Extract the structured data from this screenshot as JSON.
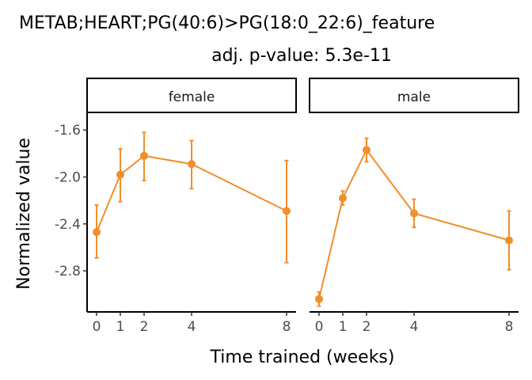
{
  "chart_data": {
    "type": "line",
    "title": "METAB;HEART;PG(40:6)>PG(18:0_22:6)_feature",
    "subtitle": "adj. p-value: 5.3e-11",
    "xlabel": "Time trained (weeks)",
    "ylabel": "Normalized value",
    "ylim": [
      -3.15,
      -1.45
    ],
    "yticks": [
      -1.6,
      -2.0,
      -2.4,
      -2.8
    ],
    "ytick_labels": [
      "-1.6",
      "-2.0",
      "-2.4",
      "-2.8"
    ],
    "xlim": [
      -0.4,
      8.4
    ],
    "xticks": [
      0,
      1,
      2,
      4,
      8
    ],
    "xtick_labels": [
      "0",
      "1",
      "2",
      "4",
      "8"
    ],
    "grid": false,
    "color": "#F28E2B",
    "facets": [
      {
        "label": "female",
        "x": [
          0,
          1,
          2,
          4,
          8
        ],
        "y": [
          -2.47,
          -1.98,
          -1.82,
          -1.89,
          -2.29
        ],
        "y_low": [
          -2.69,
          -2.21,
          -2.03,
          -2.1,
          -2.73
        ],
        "y_high": [
          -2.24,
          -1.76,
          -1.62,
          -1.69,
          -1.86
        ]
      },
      {
        "label": "male",
        "x": [
          0,
          1,
          2,
          4,
          8
        ],
        "y": [
          -3.04,
          -2.18,
          -1.77,
          -2.31,
          -2.54
        ],
        "y_low": [
          -3.1,
          -2.24,
          -1.87,
          -2.43,
          -2.79
        ],
        "y_high": [
          -2.98,
          -2.12,
          -1.67,
          -2.19,
          -2.29
        ]
      }
    ]
  }
}
